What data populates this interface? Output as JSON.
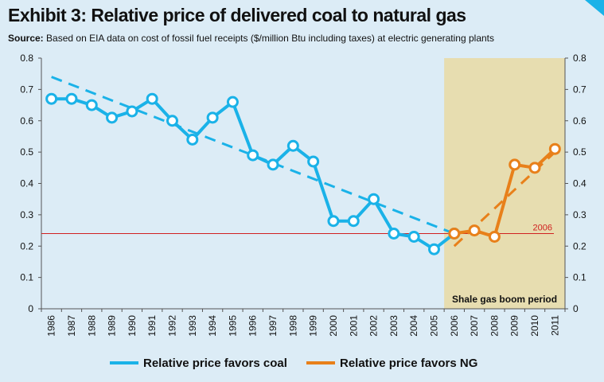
{
  "title": "Exhibit 3: Relative price of delivered coal to natural gas",
  "subtitle": {
    "source_label": "Source:",
    "text": "Based on EIA data on cost of fossil fuel receipts ($/million Btu including taxes) at electric generating plants"
  },
  "colors": {
    "coal": "#1ab2e8",
    "ng": "#e8801a",
    "shade": "#e7ddb0",
    "ref_line": "#d02020",
    "background": "#dcecf6"
  },
  "chart_data": {
    "type": "line",
    "x": [
      "1986",
      "1987",
      "1988",
      "1989",
      "1990",
      "1991",
      "1992",
      "1993",
      "1994",
      "1995",
      "1996",
      "1997",
      "1998",
      "1999",
      "2000",
      "2001",
      "2002",
      "2003",
      "2004",
      "2005",
      "2006",
      "2007",
      "2008",
      "2009",
      "2010",
      "2011"
    ],
    "series": [
      {
        "name": "Relative price favors coal",
        "x": [
          "1986",
          "1987",
          "1988",
          "1989",
          "1990",
          "1991",
          "1992",
          "1993",
          "1994",
          "1995",
          "1996",
          "1997",
          "1998",
          "1999",
          "2000",
          "2001",
          "2002",
          "2003",
          "2004",
          "2005",
          "2006"
        ],
        "values": [
          0.67,
          0.67,
          0.65,
          0.61,
          0.63,
          0.67,
          0.6,
          0.54,
          0.61,
          0.66,
          0.49,
          0.46,
          0.52,
          0.47,
          0.28,
          0.28,
          0.35,
          0.24,
          0.23,
          0.19,
          0.24
        ],
        "trend": [
          0.74,
          0.24
        ]
      },
      {
        "name": "Relative price favors NG",
        "x": [
          "2006",
          "2007",
          "2008",
          "2009",
          "2010",
          "2011"
        ],
        "values": [
          0.24,
          0.25,
          0.23,
          0.46,
          0.45,
          0.51
        ],
        "trend": [
          0.2,
          0.5
        ]
      }
    ],
    "reference_line": {
      "value": 0.24,
      "label": "2006"
    },
    "shaded_region": {
      "from": "2006",
      "to": "2011",
      "label": "Shale gas boom period"
    },
    "ylim": [
      0,
      0.8
    ],
    "yticks": [
      "0",
      "0.1",
      "0.2",
      "0.3",
      "0.4",
      "0.5",
      "0.6",
      "0.7",
      "0.8"
    ],
    "grid": false,
    "legend_position": "bottom"
  }
}
